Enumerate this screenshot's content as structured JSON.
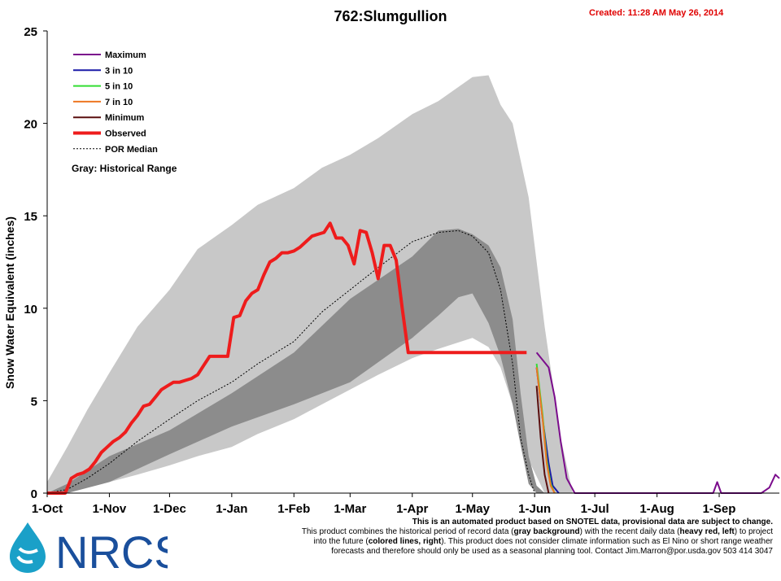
{
  "header": {
    "title": "762:Slumgullion",
    "created": "Created: 11:28 AM May 26, 2014"
  },
  "logo": {
    "text": "NRCS",
    "icon": "water-drop-icon"
  },
  "footer": {
    "line1": "This is an automated product based on SNOTEL data, provisional data are subject to change.",
    "line2a": "This product combines the historical period of record data (",
    "line2b": "gray background",
    "line2c": ") with the recent daily data (",
    "line2d": "heavy red, left",
    "line2e": ") to project",
    "line3a": "into the future (",
    "line3b": "colored lines, right",
    "line3c": "). This product does not consider climate information such as El Nino or short range weather",
    "line4": "forecasts and therefore should only be used as a seasonal planning tool. Contact Jim.Marron@por.usda.gov 503 414 3047"
  },
  "chart_data": {
    "type": "line",
    "title": "762:Slumgullion",
    "ylabel": "Snow Water Equivalent (inches)",
    "ylim": [
      0,
      25
    ],
    "yticks": [
      0,
      5,
      10,
      15,
      20,
      25
    ],
    "xticks": [
      "1-Oct",
      "1-Nov",
      "1-Dec",
      "1-Jan",
      "1-Feb",
      "1-Mar",
      "1-Apr",
      "1-May",
      "1-Jun",
      "1-Jul",
      "1-Aug",
      "1-Sep"
    ],
    "xtick_days": [
      0,
      31,
      61,
      92,
      123,
      151,
      182,
      212,
      243,
      273,
      304,
      335
    ],
    "xlim_days": [
      0,
      365
    ],
    "grid": false,
    "legend_position": "top-left",
    "legend": [
      {
        "name": "Maximum",
        "color": "#7b0c8c",
        "style": "solid"
      },
      {
        "name": "3 in 10",
        "color": "#1a1aa8",
        "style": "solid"
      },
      {
        "name": "5 in 10",
        "color": "#33dd33",
        "style": "solid"
      },
      {
        "name": "7 in 10",
        "color": "#ee7722",
        "style": "solid"
      },
      {
        "name": "Minimum",
        "color": "#5a0f0f",
        "style": "solid"
      },
      {
        "name": "Observed",
        "color": "#ee1c1c",
        "style": "heavy"
      },
      {
        "name": "POR Median",
        "color": "#000000",
        "style": "dashed"
      }
    ],
    "legend_note": "Gray: Historical Range",
    "colors": {
      "historical_range": "#c8c8c8",
      "historical_iqr": "#8c8c8c"
    },
    "historical_range": {
      "x_days": [
        0,
        10,
        20,
        31,
        45,
        61,
        75,
        92,
        105,
        123,
        137,
        151,
        165,
        182,
        195,
        212,
        220,
        226,
        232,
        240,
        248,
        256,
        262
      ],
      "low": [
        0,
        0,
        0.3,
        0.6,
        1.0,
        1.5,
        2.0,
        2.5,
        3.2,
        4.0,
        4.8,
        5.6,
        6.4,
        7.3,
        7.8,
        8.4,
        7.9,
        6.8,
        4.8,
        1.8,
        0,
        0,
        0
      ],
      "high": [
        0.6,
        2.5,
        4.5,
        6.5,
        9.0,
        11.0,
        13.2,
        14.5,
        15.6,
        16.5,
        17.6,
        18.3,
        19.2,
        20.5,
        21.2,
        22.5,
        22.6,
        21.0,
        20.0,
        16.0,
        9.0,
        3.0,
        0
      ]
    },
    "historical_iqr": {
      "x_days": [
        0,
        10,
        31,
        61,
        92,
        123,
        151,
        182,
        195,
        205,
        212,
        220,
        226,
        232,
        236,
        240,
        244,
        248
      ],
      "low": [
        0,
        0,
        0.6,
        2.1,
        3.6,
        4.8,
        6.0,
        8.4,
        9.6,
        10.6,
        10.8,
        9.2,
        7.4,
        4.8,
        2.6,
        0.5,
        0,
        0
      ],
      "high": [
        0,
        0.5,
        2.0,
        3.4,
        5.4,
        7.6,
        10.5,
        12.8,
        14.2,
        14.3,
        14.0,
        13.4,
        12.2,
        9.4,
        5.4,
        2.0,
        0.4,
        0
      ]
    },
    "series": [
      {
        "name": "Observed",
        "x": [
          0,
          9,
          12,
          15,
          18,
          21,
          24,
          27,
          30,
          33,
          36,
          39,
          42,
          45,
          48,
          51,
          54,
          57,
          60,
          63,
          66,
          69,
          72,
          75,
          78,
          81,
          84,
          87,
          90,
          93,
          96,
          99,
          102,
          105,
          108,
          111,
          114,
          117,
          120,
          123,
          126,
          129,
          132,
          135,
          138,
          141,
          144,
          147,
          150,
          153,
          156,
          159,
          162,
          165,
          168,
          171,
          174,
          177,
          180,
          183,
          186,
          189,
          192,
          195,
          198,
          201,
          204,
          207,
          210,
          213,
          216,
          218,
          221,
          224,
          227,
          230,
          233,
          236,
          239
        ],
        "y": [
          0,
          0.0,
          0.8,
          1.0,
          1.1,
          1.3,
          1.7,
          2.2,
          2.5,
          2.8,
          3.0,
          3.3,
          3.8,
          4.2,
          4.7,
          4.8,
          5.2,
          5.6,
          5.8,
          6.0,
          6.0,
          6.1,
          6.2,
          6.4,
          6.9,
          7.4,
          7.4,
          7.4,
          7.4,
          9.5,
          9.6,
          10.4,
          10.8,
          11.0,
          11.8,
          12.5,
          12.7,
          13.0,
          13.0,
          13.1,
          13.3,
          13.6,
          13.9,
          14.0,
          14.1,
          14.6,
          13.8,
          13.8,
          13.4,
          12.4,
          14.2,
          14.1,
          13.0,
          11.6,
          13.4,
          13.4,
          12.6,
          10.0,
          7.6,
          7.6,
          7.6,
          7.6,
          7.6,
          7.6,
          7.6,
          7.6,
          7.6,
          7.6,
          7.6,
          7.6,
          7.6,
          7.6,
          7.6,
          7.6,
          7.6,
          7.6,
          7.6,
          7.6,
          7.6
        ]
      },
      {
        "name": "POR Median",
        "x": [
          0,
          10,
          20,
          31,
          45,
          61,
          75,
          92,
          105,
          123,
          137,
          151,
          165,
          182,
          195,
          205,
          212,
          220,
          226,
          232,
          236,
          240,
          243
        ],
        "y": [
          0,
          0.2,
          0.8,
          1.6,
          2.8,
          4.0,
          5.0,
          6.0,
          7.0,
          8.2,
          9.8,
          11.0,
          12.2,
          13.6,
          14.1,
          14.2,
          13.9,
          13.0,
          11.0,
          7.0,
          3.0,
          1.0,
          0
        ]
      },
      {
        "name": "Maximum",
        "x": [
          244,
          247,
          250,
          253,
          256,
          259,
          263,
          268,
          274,
          304,
          332,
          334,
          336,
          356,
          360,
          363,
          365
        ],
        "y": [
          7.6,
          7.2,
          6.8,
          5.2,
          2.8,
          0.8,
          0,
          0,
          0,
          0,
          0,
          0.6,
          0,
          0,
          0.3,
          1.0,
          0.8
        ]
      },
      {
        "name": "3 in 10",
        "x": [
          244,
          247,
          250,
          252,
          255
        ],
        "y": [
          6.8,
          4.0,
          1.6,
          0.4,
          0
        ]
      },
      {
        "name": "5 in 10",
        "x": [
          244,
          247,
          249,
          251,
          253
        ],
        "y": [
          7.0,
          4.2,
          1.8,
          0.5,
          0
        ]
      },
      {
        "name": "7 in 10",
        "x": [
          244,
          247,
          249,
          251,
          253
        ],
        "y": [
          6.8,
          4.0,
          1.6,
          0.4,
          0
        ]
      },
      {
        "name": "Minimum",
        "x": [
          244,
          246,
          248,
          250
        ],
        "y": [
          5.8,
          3.0,
          1.0,
          0
        ]
      }
    ]
  }
}
